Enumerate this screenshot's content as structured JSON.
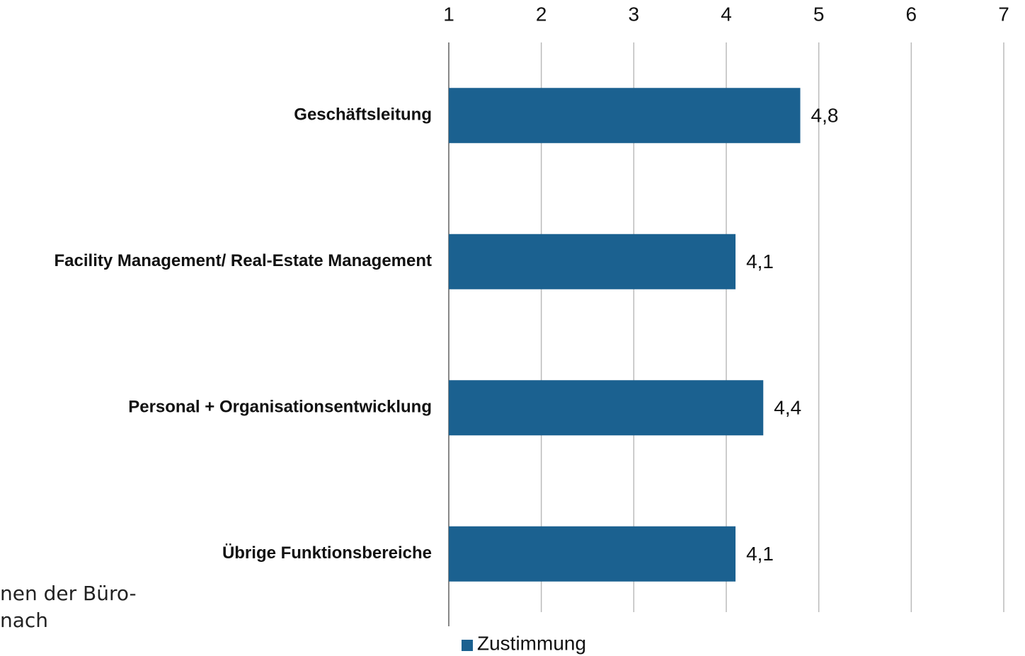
{
  "chart_data": {
    "type": "bar",
    "orientation": "horizontal",
    "categories": [
      "Geschäftsleitung",
      "Facility Management/ Real-Estate Management",
      "Personal + Organisationsentwicklung",
      "Übrige Funktionsbereiche"
    ],
    "series": [
      {
        "name": "Zustimmung",
        "color": "#1b6190",
        "values": [
          4.8,
          4.1,
          4.4,
          4.1
        ],
        "value_labels": [
          "4,8",
          "4,1",
          "4,4",
          "4,1"
        ]
      }
    ],
    "xlim": [
      1,
      7
    ],
    "xticks": [
      1,
      2,
      3,
      4,
      5,
      6,
      7
    ],
    "grid": true,
    "legend": "bottom",
    "annotations": [
      "nen der Büro-",
      "nach"
    ]
  }
}
